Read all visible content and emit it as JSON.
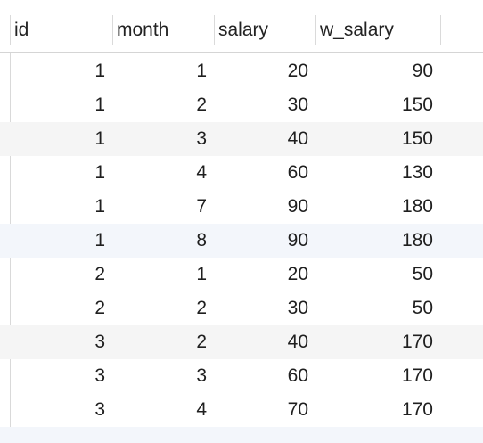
{
  "table": {
    "columns": [
      "id",
      "month",
      "salary",
      "w_salary"
    ],
    "rows": [
      [
        "1",
        "1",
        "20",
        "90"
      ],
      [
        "1",
        "2",
        "30",
        "150"
      ],
      [
        "1",
        "3",
        "40",
        "150"
      ],
      [
        "1",
        "4",
        "60",
        "130"
      ],
      [
        "1",
        "7",
        "90",
        "180"
      ],
      [
        "1",
        "8",
        "90",
        "180"
      ],
      [
        "2",
        "1",
        "20",
        "50"
      ],
      [
        "2",
        "2",
        "30",
        "50"
      ],
      [
        "3",
        "2",
        "40",
        "170"
      ],
      [
        "3",
        "3",
        "60",
        "170"
      ],
      [
        "3",
        "4",
        "70",
        "170"
      ]
    ]
  },
  "colors": {
    "row_alt": "#f5f5f5",
    "row_alt_blue": "#f3f6fb",
    "header_border": "#d5d5d5"
  }
}
